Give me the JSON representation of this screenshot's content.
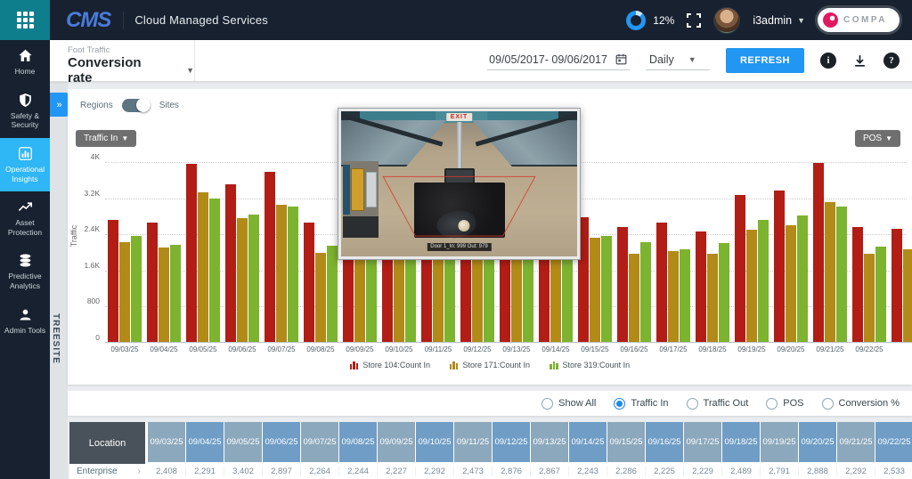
{
  "navbar": {
    "app_initials": "CMS",
    "app_title": "Cloud Managed Services",
    "progress_pct": "12%",
    "username": "i3admin",
    "partner_label": "COMPA"
  },
  "sidebar": {
    "items": [
      {
        "label": "Home",
        "icon": "home-icon",
        "active": false
      },
      {
        "label": "Safety & Security",
        "icon": "shield-icon",
        "active": false
      },
      {
        "label": "Operational Insights",
        "icon": "bar-chart-icon",
        "active": true
      },
      {
        "label": "Asset Protection",
        "icon": "trend-icon",
        "active": false
      },
      {
        "label": "Predictive Analytics",
        "icon": "database-icon",
        "active": false
      },
      {
        "label": "Admin Tools",
        "icon": "person-icon",
        "active": false
      }
    ]
  },
  "subheader": {
    "metric_category": "Foot Traffic",
    "metric_name": "Conversion rate",
    "date_range": "09/05/2017- 09/06/2017",
    "interval": "Daily",
    "refresh_label": "REFRESH"
  },
  "filters": {
    "left_toggle_label": "Regions",
    "right_toggle_label": "Sites",
    "left_chip": "Traffic In",
    "right_chip": "POS",
    "site_vertical_label": "TREESITE"
  },
  "chart_data": {
    "type": "bar",
    "title": "",
    "xlabel": "",
    "ylabel": "Traffic",
    "ylim": [
      0,
      4000
    ],
    "ytick_labels": [
      "4K",
      "3.2K",
      "2.4K",
      "1.6K",
      "800",
      "0"
    ],
    "grid": "dotted-horizontal",
    "legend_position": "bottom-center",
    "categories": [
      "09/03/25",
      "09/04/25",
      "09/05/25",
      "09/06/25",
      "09/07/25",
      "09/08/25",
      "09/09/25",
      "09/10/25",
      "09/11/25",
      "09/12/25",
      "09/13/25",
      "09/14/25",
      "09/15/25",
      "09/16/25",
      "09/17/25",
      "09/18/25",
      "09/19/25",
      "09/20/25",
      "09/21/25",
      "09/22/25",
      "09/23/25"
    ],
    "series": [
      {
        "name": "Store 104:Count In",
        "color": "#b21d15",
        "values": [
          2700,
          2650,
          3950,
          3480,
          3770,
          2650,
          2900,
          3100,
          2800,
          3000,
          2900,
          3050,
          2750,
          2550,
          2650,
          2450,
          3250,
          3350,
          3970,
          2550,
          2500
        ]
      },
      {
        "name": "Store 171:Count In",
        "color": "#b28a17",
        "values": [
          2200,
          2080,
          3320,
          2730,
          3040,
          1970,
          2400,
          2600,
          2300,
          2500,
          2450,
          2500,
          2300,
          1950,
          2000,
          1950,
          2480,
          2580,
          3100,
          1950,
          2050
        ]
      },
      {
        "name": "Store 319:Count In",
        "color": "#7cb32f",
        "values": [
          2350,
          2150,
          3180,
          2820,
          3000,
          2120,
          2500,
          2700,
          2400,
          2600,
          2550,
          2650,
          2350,
          2200,
          2050,
          2180,
          2700,
          2800,
          3000,
          2100,
          2200
        ]
      }
    ]
  },
  "camera_overlay": {
    "exit_sign": "EXIT",
    "caption": "Door 1_In: 999 Out: 979"
  },
  "radio_group": {
    "options": [
      {
        "label": "Show All",
        "selected": false
      },
      {
        "label": "Traffic In",
        "selected": true
      },
      {
        "label": "Traffic Out",
        "selected": false
      },
      {
        "label": "POS",
        "selected": false
      },
      {
        "label": "Conversion %",
        "selected": false
      }
    ]
  },
  "table": {
    "location_header": "Location",
    "date_headers": [
      "09/03/25",
      "09/04/25",
      "09/05/25",
      "09/06/25",
      "09/07/25",
      "09/08/25",
      "09/09/25",
      "09/10/25",
      "09/11/25",
      "09/12/25",
      "09/13/25",
      "09/14/25",
      "09/15/25",
      "09/16/25",
      "09/17/25",
      "09/18/25",
      "09/19/25",
      "09/20/25",
      "09/21/25",
      "09/22/25"
    ],
    "rows": [
      {
        "location": "Enterprise",
        "values": [
          "2,408",
          "2,291",
          "3,402",
          "2,897",
          "2,264",
          "2,244",
          "2,227",
          "2,292",
          "2,473",
          "2,876",
          "2,867",
          "2,243",
          "2,286",
          "2,225",
          "2,229",
          "2,489",
          "2,791",
          "2,888",
          "2,292",
          "2,533"
        ]
      }
    ]
  },
  "colors": {
    "navbar_bg": "#17212f",
    "teal_menu": "#0e7e8d",
    "active_nav": "#2eb6f5",
    "accent_blue": "#2196f3",
    "bar_red": "#b21d15",
    "bar_olive": "#b28a17",
    "bar_green": "#7cb32f",
    "table_header_dark": "#49525a",
    "table_header_blue_light": "#8ca8bc",
    "table_header_blue_dark": "#6f9dc6"
  }
}
